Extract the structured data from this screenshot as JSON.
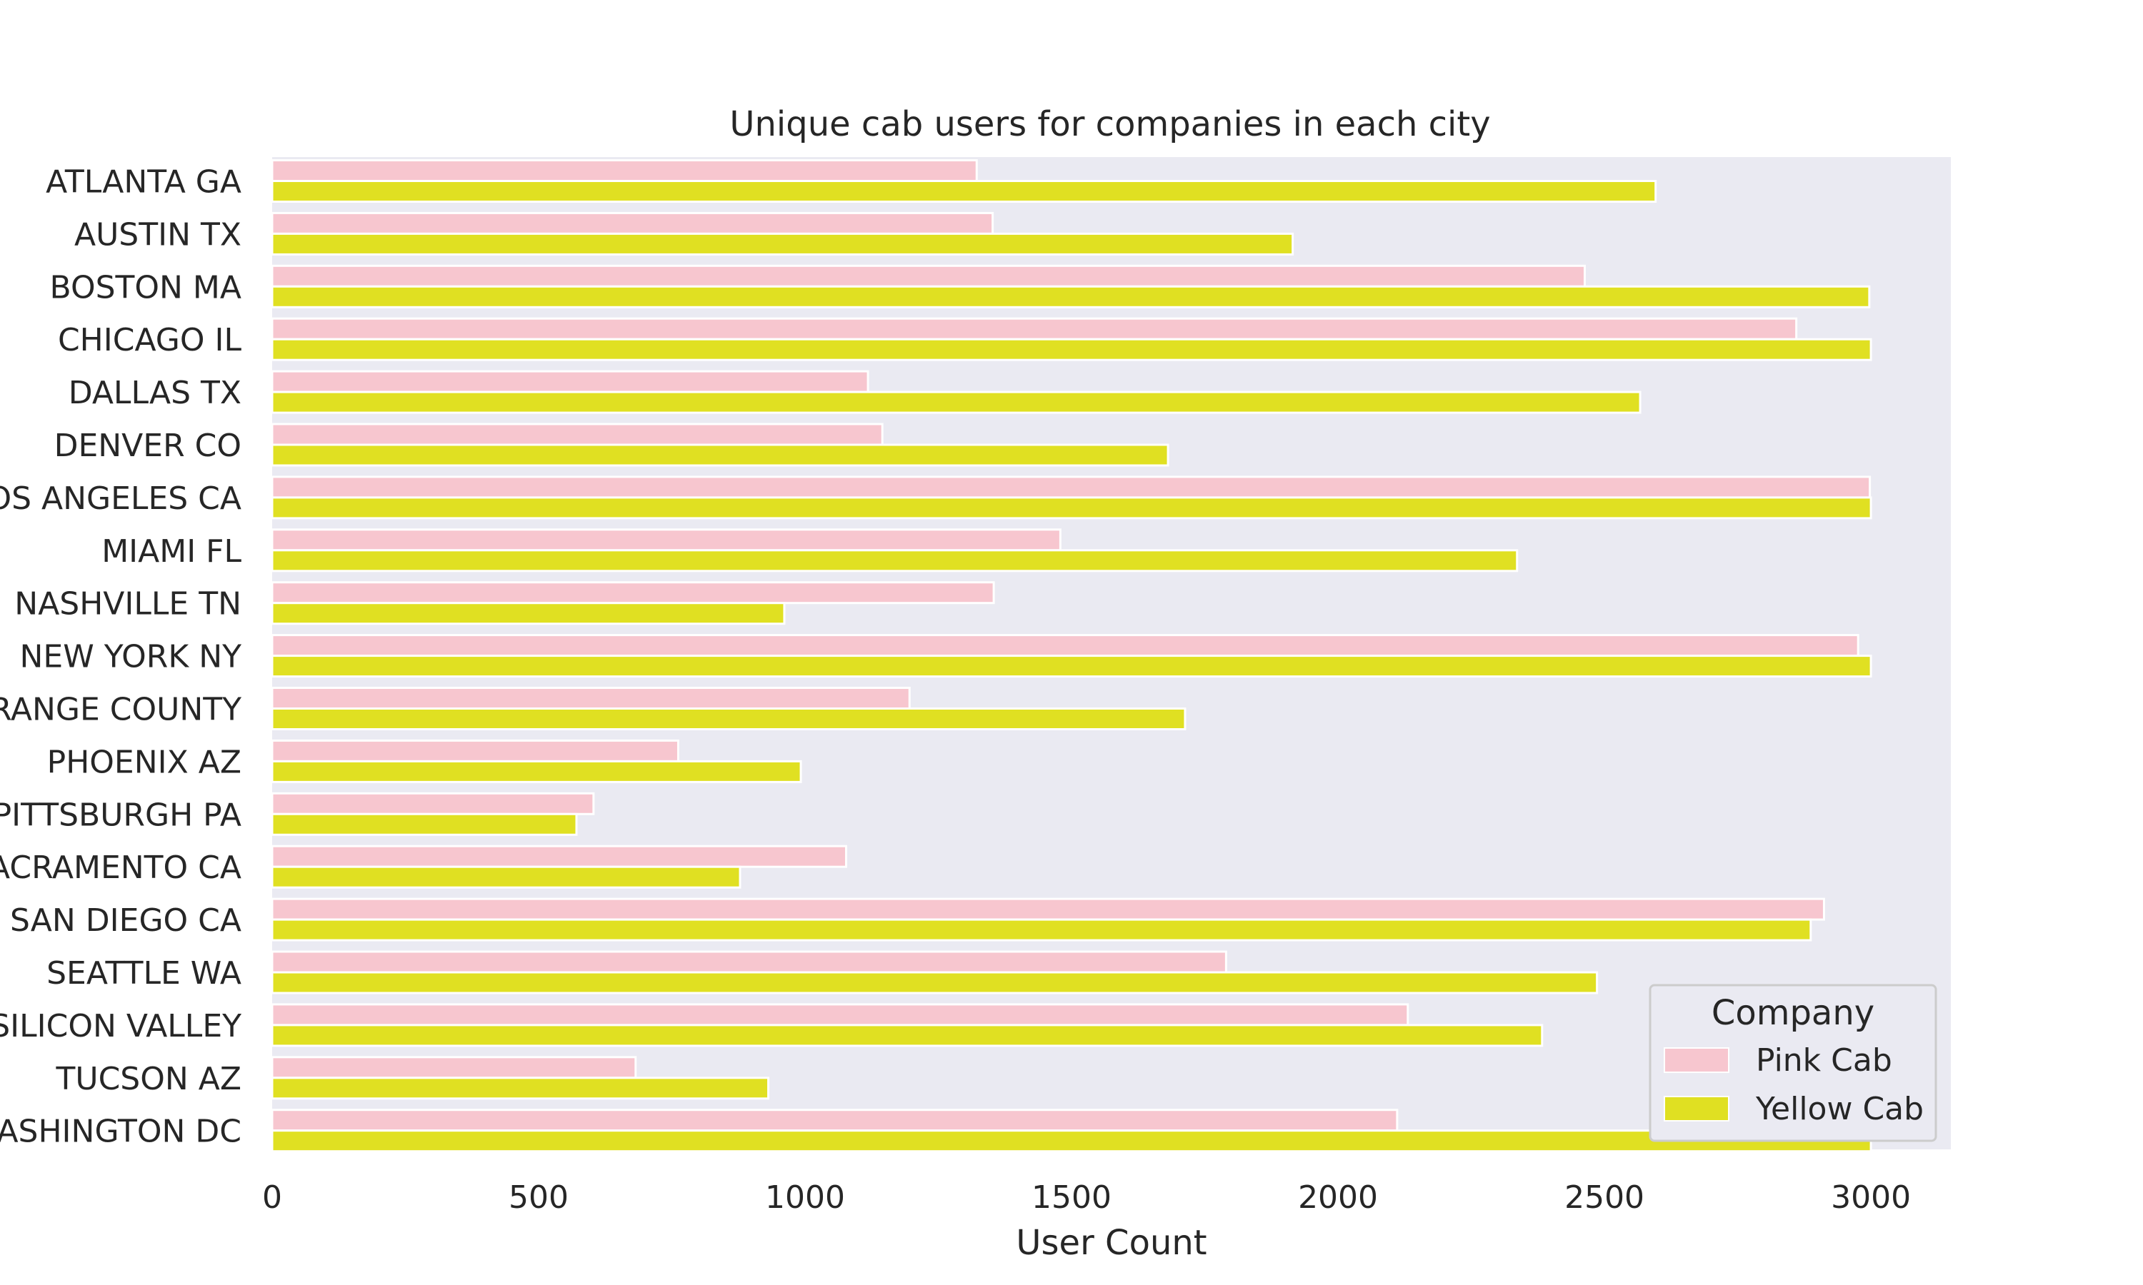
{
  "chart_data": {
    "type": "bar",
    "orientation": "horizontal",
    "title": "Unique cab users for companies in each city",
    "xlabel": "User Count",
    "ylabel": "",
    "xlim": [
      0,
      3150
    ],
    "xticks": [
      0,
      500,
      1000,
      1500,
      2000,
      2500,
      3000
    ],
    "grid": false,
    "categories": [
      "ATLANTA GA",
      "AUSTIN TX",
      "BOSTON MA",
      "CHICAGO IL",
      "DALLAS TX",
      "DENVER CO",
      "LOS ANGELES CA",
      "MIAMI FL",
      "NASHVILLE TN",
      "NEW YORK NY",
      "ORANGE COUNTY",
      "PHOENIX AZ",
      "PITTSBURGH PA",
      "SACRAMENTO CA",
      "SAN DIEGO CA",
      "SEATTLE WA",
      "SILICON VALLEY",
      "TUCSON AZ",
      "WASHINGTON DC"
    ],
    "series": [
      {
        "name": "Pink Cab",
        "color": "#f7c6cf",
        "values": [
          1322,
          1352,
          2463,
          2860,
          1118,
          1145,
          2998,
          1479,
          1354,
          2976,
          1196,
          762,
          603,
          1077,
          2912,
          1790,
          2131,
          682,
          2111
        ]
      },
      {
        "name": "Yellow Cab",
        "color": "#e0e022",
        "values": [
          2596,
          1915,
          2997,
          3000,
          2567,
          1681,
          3000,
          2336,
          961,
          3000,
          1713,
          992,
          571,
          878,
          2887,
          2486,
          2383,
          931,
          3000
        ]
      }
    ],
    "legend": {
      "title": "Company",
      "placement": "lower-right"
    },
    "plot_background": "#eaeaf2"
  }
}
